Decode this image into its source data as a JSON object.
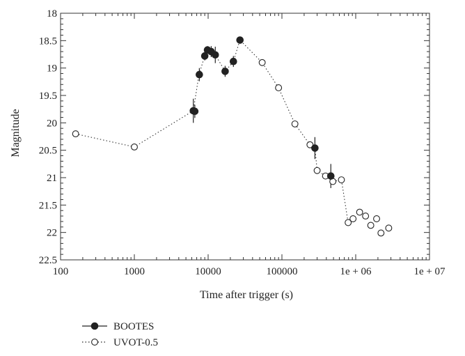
{
  "chart_data": {
    "type": "scatter",
    "title": "",
    "xlabel": "Time after trigger (s)",
    "ylabel": "Magnitude",
    "x_scale": "log",
    "xlim": [
      100,
      10000000
    ],
    "ylim": [
      22.5,
      18
    ],
    "y_inverted": true,
    "grid": false,
    "legend_position": "bottom-left, below plot",
    "x_ticks": [
      {
        "value": 100,
        "label": "100"
      },
      {
        "value": 1000,
        "label": "1000"
      },
      {
        "value": 10000,
        "label": "10000"
      },
      {
        "value": 100000,
        "label": "100000"
      },
      {
        "value": 1000000,
        "label": "1e + 06"
      },
      {
        "value": 10000000,
        "label": "1e + 07"
      }
    ],
    "y_ticks": [
      {
        "value": 18,
        "label": "18"
      },
      {
        "value": 18.5,
        "label": "18.5"
      },
      {
        "value": 19,
        "label": "19"
      },
      {
        "value": 19.5,
        "label": "19.5"
      },
      {
        "value": 20,
        "label": "20"
      },
      {
        "value": 20.5,
        "label": "20.5"
      },
      {
        "value": 21,
        "label": "21"
      },
      {
        "value": 21.5,
        "label": "21.5"
      },
      {
        "value": 22,
        "label": "22"
      },
      {
        "value": 22.5,
        "label": "22.5"
      }
    ],
    "combined_curve": [
      [
        160,
        20.2
      ],
      [
        1000,
        20.44
      ],
      [
        6300,
        19.78
      ],
      [
        7500,
        19.12
      ],
      [
        9000,
        18.78
      ],
      [
        9800,
        18.67
      ],
      [
        11000,
        18.7
      ],
      [
        12500,
        18.76
      ],
      [
        17000,
        19.06
      ],
      [
        22000,
        18.88
      ],
      [
        27000,
        18.49
      ],
      [
        54000,
        18.9
      ],
      [
        90000,
        19.36
      ],
      [
        150000,
        20.02
      ],
      [
        240000,
        20.4
      ],
      [
        280000,
        20.46
      ],
      [
        300000,
        20.87
      ],
      [
        390000,
        20.97
      ],
      [
        460000,
        20.97
      ],
      [
        490000,
        21.07
      ],
      [
        640000,
        21.04
      ],
      [
        790000,
        21.82
      ]
    ],
    "series": [
      {
        "name": "BOOTES",
        "marker": "filled-circle",
        "color": "#222222",
        "points": [
          {
            "x": 6300,
            "y": 19.78,
            "yerr": 0.22
          },
          {
            "x": 6600,
            "y": 19.79,
            "yerr": 0.12
          },
          {
            "x": 7600,
            "y": 19.12,
            "yerr": 0.12
          },
          {
            "x": 9000,
            "y": 18.78,
            "yerr": 0.08
          },
          {
            "x": 9800,
            "y": 18.67,
            "yerr": 0.07
          },
          {
            "x": 11000,
            "y": 18.7,
            "yerr": 0.1
          },
          {
            "x": 12500,
            "y": 18.76,
            "yerr": 0.15
          },
          {
            "x": 17000,
            "y": 19.06,
            "yerr": 0.1
          },
          {
            "x": 22000,
            "y": 18.88,
            "yerr": 0.1
          },
          {
            "x": 27000,
            "y": 18.49,
            "yerr": 0.05
          },
          {
            "x": 280000,
            "y": 20.46,
            "yerr": 0.2
          },
          {
            "x": 460000,
            "y": 20.97,
            "yerr": 0.22
          }
        ]
      },
      {
        "name": "UVOT-0.5",
        "marker": "open-circle",
        "color": "#222222",
        "points": [
          {
            "x": 160,
            "y": 20.2
          },
          {
            "x": 1000,
            "y": 20.44
          },
          {
            "x": 54000,
            "y": 18.9
          },
          {
            "x": 90000,
            "y": 19.36
          },
          {
            "x": 150000,
            "y": 20.02
          },
          {
            "x": 240000,
            "y": 20.4
          },
          {
            "x": 300000,
            "y": 20.87
          },
          {
            "x": 390000,
            "y": 20.97
          },
          {
            "x": 490000,
            "y": 21.07
          },
          {
            "x": 640000,
            "y": 21.04
          },
          {
            "x": 790000,
            "y": 21.82
          },
          {
            "x": 920000,
            "y": 21.75
          },
          {
            "x": 1130000,
            "y": 21.63
          },
          {
            "x": 1360000,
            "y": 21.7
          },
          {
            "x": 1600000,
            "y": 21.87
          },
          {
            "x": 1920000,
            "y": 21.75
          },
          {
            "x": 2200000,
            "y": 22.01
          },
          {
            "x": 2800000,
            "y": 21.92
          }
        ]
      }
    ]
  }
}
